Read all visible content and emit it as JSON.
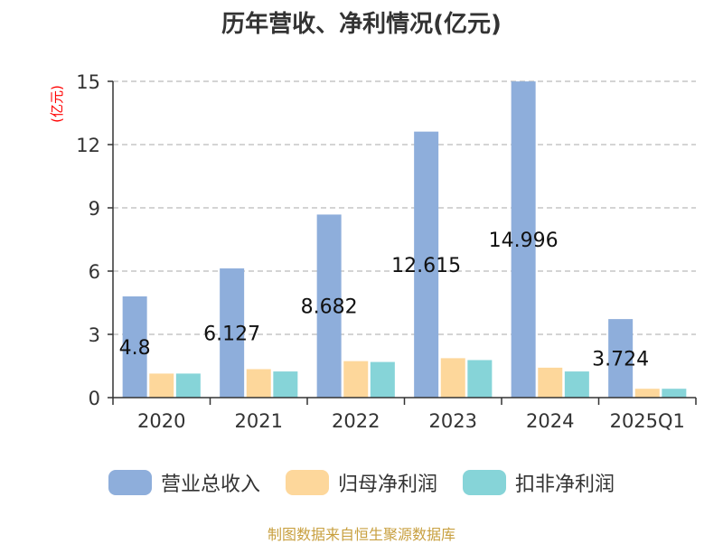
{
  "chart_data": {
    "type": "bar",
    "title": "历年营收、净利情况(亿元)",
    "ylabel": "(亿元)",
    "categories": [
      "2020",
      "2021",
      "2022",
      "2023",
      "2024",
      "2025Q1"
    ],
    "ylim": [
      0,
      15
    ],
    "yticks": [
      0,
      3,
      6,
      9,
      12,
      15
    ],
    "grid": true,
    "legend_position": "bottom",
    "series": [
      {
        "name": "营业总收入",
        "color": "#8eaedb",
        "values": [
          4.8,
          6.127,
          8.682,
          12.615,
          14.996,
          3.724
        ],
        "data_labels": [
          "4.8",
          "6.127",
          "8.682",
          "12.615",
          "14.996",
          "3.724"
        ]
      },
      {
        "name": "归母净利润",
        "color": "#fdd79b",
        "values": [
          1.14,
          1.35,
          1.73,
          1.87,
          1.42,
          0.42
        ]
      },
      {
        "name": "扣非净利润",
        "color": "#86d4d8",
        "values": [
          1.14,
          1.24,
          1.69,
          1.78,
          1.24,
          0.42
        ]
      }
    ]
  },
  "source_note": "制图数据来自恒生聚源数据库",
  "colors": {
    "axis": "#333333",
    "grid": "#bbbbbb",
    "ylabel": "#ff0000",
    "source": "#c8a040"
  }
}
